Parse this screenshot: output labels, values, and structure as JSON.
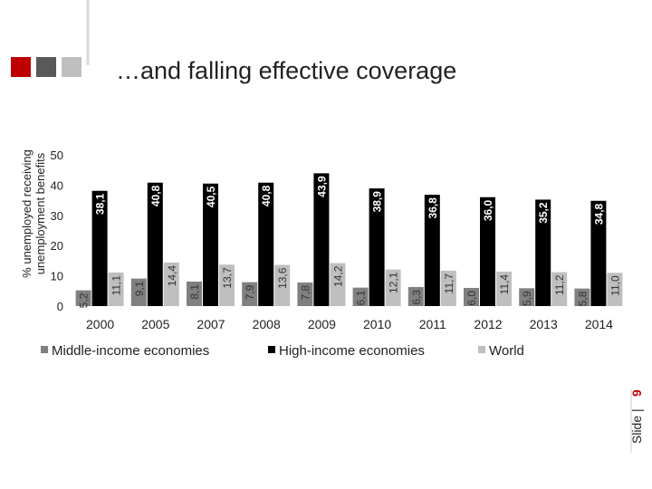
{
  "chart_data": {
    "type": "bar",
    "title": "…and falling effective coverage",
    "y_label": [
      "% unemployed receiving",
      "unemployment benefits"
    ],
    "categories": [
      "2000",
      "2005",
      "2007",
      "2008",
      "2009",
      "2010",
      "2011",
      "2012",
      "2013",
      "2014"
    ],
    "series": [
      {
        "name": "Middle-income economies",
        "color": "#808080",
        "values": [
          5.2,
          9.1,
          8.1,
          7.9,
          7.8,
          6.1,
          6.3,
          6.0,
          5.9,
          5.8
        ],
        "value_labels": [
          "5,2",
          "9,1",
          "8,1",
          "7,9",
          "7,8",
          "6,1",
          "6,3",
          "6,0",
          "5,9",
          "5,8"
        ]
      },
      {
        "name": "High-income economies",
        "color": "#000000",
        "values": [
          38.1,
          40.8,
          40.5,
          40.8,
          43.9,
          38.9,
          36.8,
          36.0,
          35.2,
          34.8
        ],
        "value_labels": [
          "38,1",
          "40,8",
          "40,5",
          "40,8",
          "43,9",
          "38,9",
          "36,8",
          "36,0",
          "35,2",
          "34,8"
        ]
      },
      {
        "name": "World",
        "color": "#bfbfbf",
        "values": [
          11.1,
          14.4,
          13.7,
          13.6,
          14.2,
          12.1,
          11.7,
          11.4,
          11.2,
          11.0
        ],
        "value_labels": [
          "11,1",
          "14,4",
          "13,7",
          "13,6",
          "14,2",
          "12,1",
          "11,7",
          "11,4",
          "11,2",
          "11,0"
        ]
      }
    ],
    "ylim": [
      0,
      50
    ],
    "yticks": [
      0,
      10,
      20,
      30,
      40,
      50
    ]
  },
  "footer": {
    "slide_label": "Slide |",
    "slide_number": "9"
  }
}
